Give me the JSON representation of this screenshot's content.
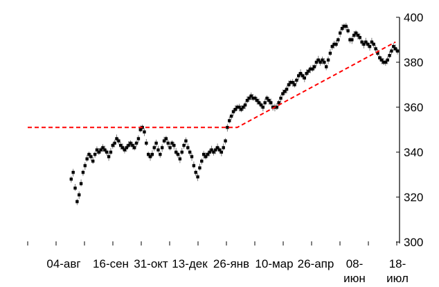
{
  "chart_data": {
    "type": "line",
    "style": "ohlc-bars",
    "title": "",
    "xlabel": "",
    "ylabel": "",
    "ylim": [
      300,
      400
    ],
    "y_ticks": [
      300,
      320,
      340,
      360,
      380,
      400
    ],
    "y_axis_side": "right",
    "grid": false,
    "legend": "none",
    "x_tick_labels": [
      [
        "04-авг"
      ],
      [
        "16-сен"
      ],
      [
        "31-окт"
      ],
      [
        "13-дек"
      ],
      [
        "26-янв"
      ],
      [
        "10-мар"
      ],
      [
        "26-апр"
      ],
      [
        "08-",
        "июн"
      ],
      [
        "18-",
        "июл"
      ]
    ],
    "price": {
      "color": "#000000",
      "points": [
        [
          0,
          328
        ],
        [
          1,
          331
        ],
        [
          2,
          324
        ],
        [
          3,
          318
        ],
        [
          4,
          321
        ],
        [
          5,
          326
        ],
        [
          6,
          331
        ],
        [
          7,
          334
        ],
        [
          8,
          337
        ],
        [
          9,
          339
        ],
        [
          10,
          338
        ],
        [
          11,
          336
        ],
        [
          12,
          339
        ],
        [
          13,
          341
        ],
        [
          14,
          340
        ],
        [
          15,
          341
        ],
        [
          16,
          342
        ],
        [
          17,
          341
        ],
        [
          18,
          340
        ],
        [
          19,
          338
        ],
        [
          20,
          340
        ],
        [
          21,
          343
        ],
        [
          22,
          344
        ],
        [
          23,
          346
        ],
        [
          24,
          345
        ],
        [
          25,
          343
        ],
        [
          26,
          342
        ],
        [
          27,
          341
        ],
        [
          28,
          342
        ],
        [
          29,
          343
        ],
        [
          30,
          344
        ],
        [
          31,
          343
        ],
        [
          32,
          342
        ],
        [
          33,
          344
        ],
        [
          34,
          346
        ],
        [
          35,
          350
        ],
        [
          36,
          351
        ],
        [
          37,
          349
        ],
        [
          38,
          344
        ],
        [
          39,
          339
        ],
        [
          40,
          338
        ],
        [
          41,
          339
        ],
        [
          42,
          342
        ],
        [
          43,
          344
        ],
        [
          44,
          341
        ],
        [
          45,
          339
        ],
        [
          46,
          342
        ],
        [
          47,
          345
        ],
        [
          48,
          346
        ],
        [
          49,
          344
        ],
        [
          50,
          342
        ],
        [
          51,
          344
        ],
        [
          52,
          343
        ],
        [
          53,
          340
        ],
        [
          54,
          339
        ],
        [
          55,
          337
        ],
        [
          56,
          340
        ],
        [
          57,
          343
        ],
        [
          58,
          345
        ],
        [
          59,
          342
        ],
        [
          60,
          340
        ],
        [
          61,
          338
        ],
        [
          62,
          334
        ],
        [
          63,
          331
        ],
        [
          64,
          329
        ],
        [
          65,
          333
        ],
        [
          66,
          336
        ],
        [
          67,
          339
        ],
        [
          68,
          338
        ],
        [
          69,
          339
        ],
        [
          70,
          340
        ],
        [
          71,
          341
        ],
        [
          72,
          340
        ],
        [
          73,
          341
        ],
        [
          74,
          342
        ],
        [
          75,
          341
        ],
        [
          76,
          340
        ],
        [
          77,
          342
        ],
        [
          78,
          345
        ],
        [
          79,
          351
        ],
        [
          80,
          354
        ],
        [
          81,
          356
        ],
        [
          82,
          358
        ],
        [
          83,
          359
        ],
        [
          84,
          360
        ],
        [
          85,
          360
        ],
        [
          86,
          359
        ],
        [
          87,
          360
        ],
        [
          88,
          361
        ],
        [
          89,
          363
        ],
        [
          90,
          364
        ],
        [
          91,
          365
        ],
        [
          92,
          364
        ],
        [
          93,
          364
        ],
        [
          94,
          363
        ],
        [
          95,
          362
        ],
        [
          96,
          361
        ],
        [
          97,
          360
        ],
        [
          98,
          362
        ],
        [
          99,
          364
        ],
        [
          100,
          363
        ],
        [
          101,
          362
        ],
        [
          102,
          360
        ],
        [
          103,
          360
        ],
        [
          104,
          360
        ],
        [
          105,
          362
        ],
        [
          106,
          364
        ],
        [
          107,
          366
        ],
        [
          108,
          367
        ],
        [
          109,
          368
        ],
        [
          110,
          370
        ],
        [
          111,
          371
        ],
        [
          112,
          371
        ],
        [
          113,
          370
        ],
        [
          114,
          372
        ],
        [
          115,
          374
        ],
        [
          116,
          375
        ],
        [
          117,
          374
        ],
        [
          118,
          373
        ],
        [
          119,
          375
        ],
        [
          120,
          376
        ],
        [
          121,
          377
        ],
        [
          122,
          377
        ],
        [
          123,
          378
        ],
        [
          124,
          380
        ],
        [
          125,
          381
        ],
        [
          126,
          380
        ],
        [
          127,
          381
        ],
        [
          128,
          380
        ],
        [
          129,
          378
        ],
        [
          130,
          381
        ],
        [
          131,
          384
        ],
        [
          132,
          387
        ],
        [
          133,
          388
        ],
        [
          134,
          388
        ],
        [
          135,
          390
        ],
        [
          136,
          393
        ],
        [
          137,
          395
        ],
        [
          138,
          396
        ],
        [
          139,
          396
        ],
        [
          140,
          394
        ],
        [
          141,
          390
        ],
        [
          142,
          390
        ],
        [
          143,
          392
        ],
        [
          144,
          393
        ],
        [
          145,
          392
        ],
        [
          146,
          391
        ],
        [
          147,
          389
        ],
        [
          148,
          388
        ],
        [
          149,
          389
        ],
        [
          150,
          388
        ],
        [
          151,
          387
        ],
        [
          152,
          389
        ],
        [
          153,
          388
        ],
        [
          154,
          386
        ],
        [
          155,
          384
        ],
        [
          156,
          382
        ],
        [
          157,
          381
        ],
        [
          158,
          380
        ],
        [
          159,
          380
        ],
        [
          160,
          381
        ],
        [
          161,
          383
        ],
        [
          162,
          385
        ],
        [
          163,
          387
        ],
        [
          164,
          386
        ],
        [
          165,
          385
        ]
      ]
    },
    "trendline": {
      "color": "#ff0000",
      "style": "dashed",
      "points": [
        [
          -22,
          351
        ],
        [
          84,
          351
        ],
        [
          164,
          389
        ]
      ]
    }
  }
}
